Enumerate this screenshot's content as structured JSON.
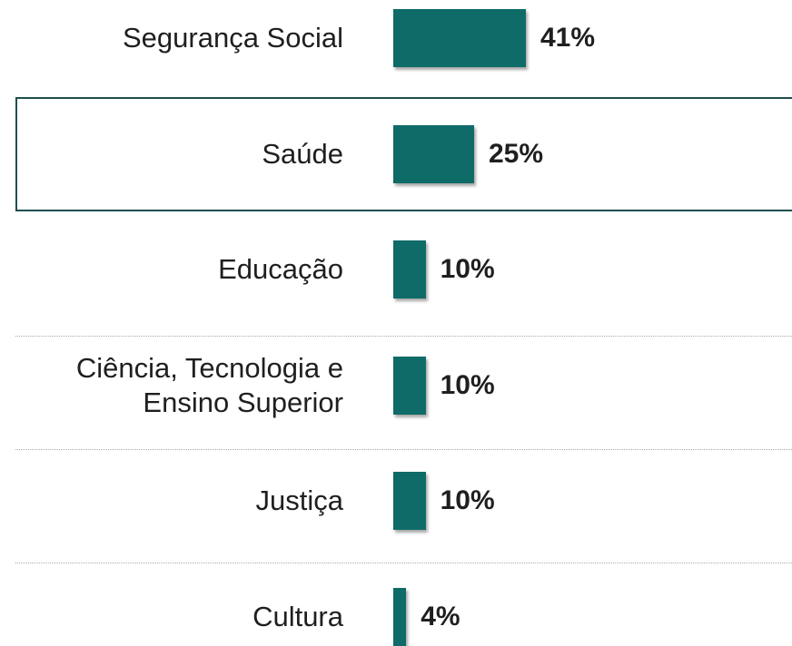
{
  "chart_data": {
    "type": "bar",
    "orientation": "horizontal",
    "categories": [
      "Segurança Social",
      "Saúde",
      "Educação",
      "Ciência, Tecnologia e Ensino Superior",
      "Justiça",
      "Cultura"
    ],
    "values": [
      41,
      25,
      10,
      10,
      10,
      4
    ],
    "value_labels": [
      "41%",
      "25%",
      "10%",
      "10%",
      "10%",
      "4%"
    ],
    "color": "#0e6b68",
    "highlight": 1
  }
}
